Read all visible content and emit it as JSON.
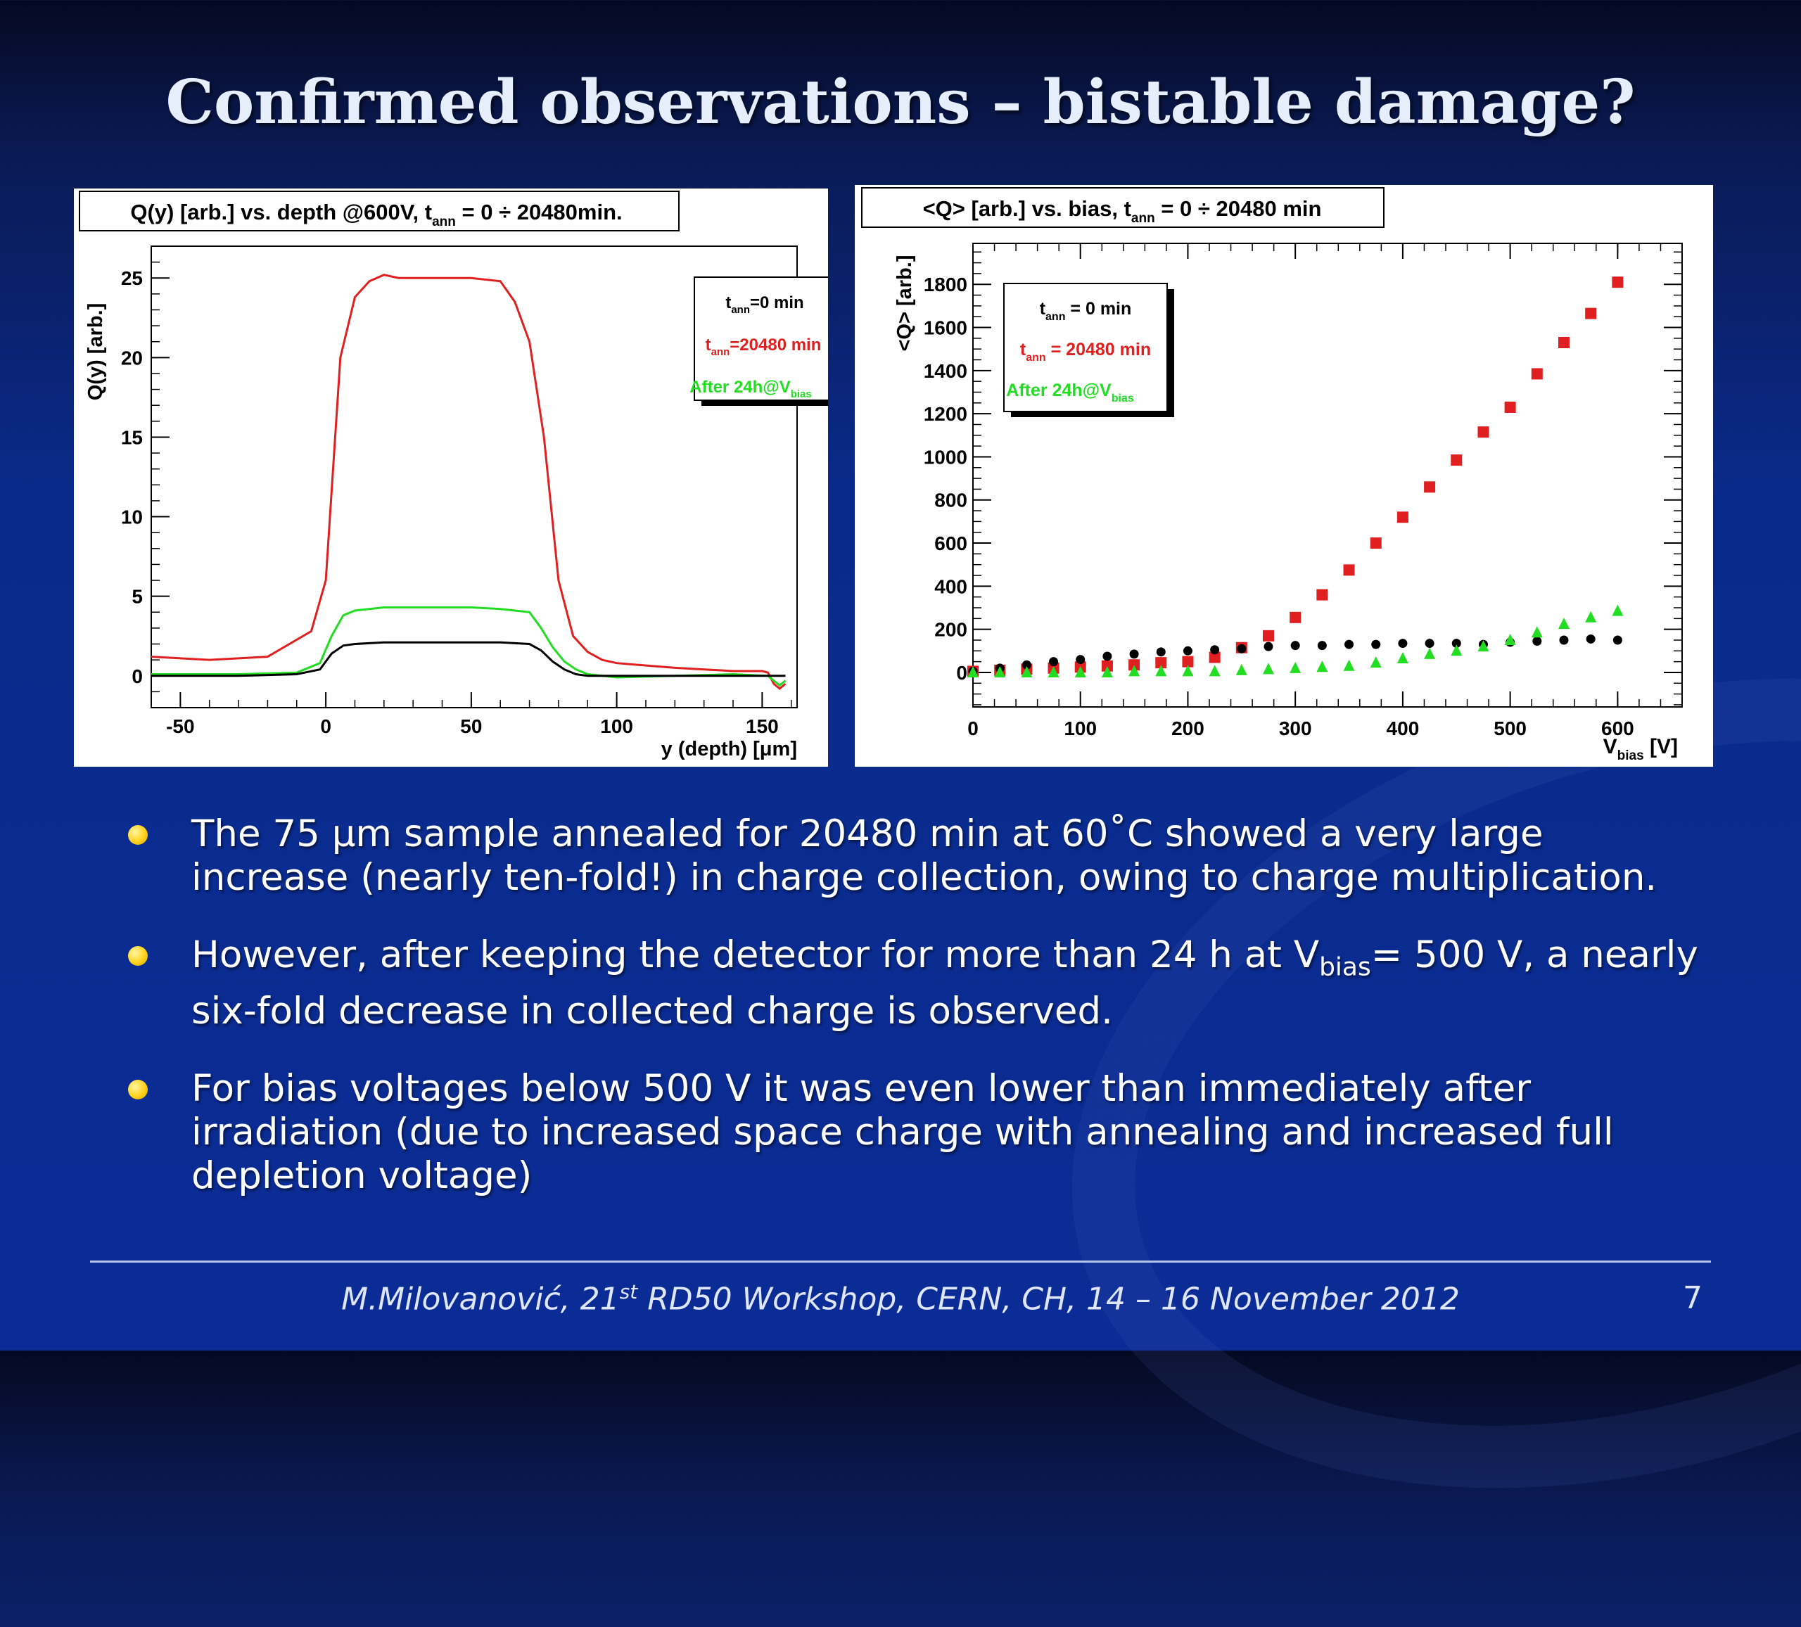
{
  "slide": {
    "title": "Confirmed observations – bistable damage?",
    "footer_prefix": "M.Milovanović, 21",
    "footer_sup": "st",
    "footer_suffix": " RD50 Workshop, CERN, CH, 14 – 16 November 2012",
    "page_number": "7",
    "bullets": [
      {
        "text": "The 75 μm sample annealed for 20480 min at 60˚C showed a very large increase (nearly ten-fold!) in charge collection, owing to charge multiplication."
      },
      {
        "text_a": "However, after keeping the detector for more than 24 h at V",
        "sub": "bias",
        "text_b": "= 500 V, a nearly six-fold decrease in collected charge is observed."
      },
      {
        "text": "For bias voltages below 500 V it was even lower than immediately after irradiation (due to increased space charge with annealing and increased full depletion voltage)"
      }
    ]
  },
  "colors": {
    "red": "#e02020",
    "green": "#22dd22",
    "black": "#000000"
  },
  "chart_data": [
    {
      "type": "line",
      "title_pre": "Q(y) [arb.] vs. depth @600V, t",
      "title_sub": "ann",
      "title_post": " = 0 ÷ 20480min.",
      "xlabel": "y (depth) [μm]",
      "ylabel": "Q(y) [arb.]",
      "xlim": [
        -60,
        162
      ],
      "ylim": [
        -2,
        27
      ],
      "xticks": [
        -50,
        0,
        50,
        100,
        150
      ],
      "yticks": [
        0,
        5,
        10,
        15,
        20,
        25
      ],
      "legend": [
        {
          "t": "t",
          "sub": "ann",
          "rest": "=0 min",
          "color": "#000000"
        },
        {
          "t": "t",
          "sub": "ann",
          "rest": "=20480 min",
          "color": "#e02020"
        },
        {
          "t": "After 24h@V",
          "sub": "bias",
          "rest": "",
          "color": "#22dd22"
        }
      ],
      "series": [
        {
          "color": "#e02020",
          "x": [
            -60,
            -40,
            -20,
            -5,
            0,
            5,
            10,
            15,
            20,
            25,
            30,
            40,
            50,
            60,
            65,
            70,
            75,
            80,
            85,
            90,
            95,
            100,
            120,
            140,
            150,
            152,
            154,
            156,
            158
          ],
          "y": [
            1.2,
            1.0,
            1.2,
            2.8,
            6.0,
            20.0,
            23.8,
            24.8,
            25.2,
            25.0,
            25.0,
            25.0,
            25.0,
            24.8,
            23.5,
            21.0,
            15.0,
            6.0,
            2.5,
            1.5,
            1.0,
            0.8,
            0.5,
            0.3,
            0.3,
            0.2,
            -0.5,
            -0.8,
            -0.5
          ]
        },
        {
          "color": "#22dd22",
          "x": [
            -60,
            -30,
            -10,
            -2,
            2,
            6,
            10,
            20,
            30,
            50,
            60,
            70,
            74,
            78,
            82,
            86,
            90,
            100,
            120,
            140,
            152,
            156,
            158
          ],
          "y": [
            0.1,
            0.1,
            0.2,
            0.8,
            2.5,
            3.8,
            4.1,
            4.3,
            4.3,
            4.3,
            4.2,
            4.0,
            3.0,
            1.8,
            0.9,
            0.4,
            0.1,
            -0.1,
            0.0,
            0.1,
            0.0,
            -0.6,
            -0.3
          ]
        },
        {
          "color": "#000000",
          "x": [
            -60,
            -30,
            -10,
            -2,
            2,
            6,
            10,
            20,
            40,
            60,
            70,
            74,
            78,
            82,
            86,
            90,
            100,
            120,
            140,
            158
          ],
          "y": [
            0.0,
            0.0,
            0.1,
            0.4,
            1.4,
            1.9,
            2.0,
            2.1,
            2.1,
            2.1,
            2.0,
            1.6,
            0.9,
            0.4,
            0.1,
            0.0,
            0.0,
            0.0,
            0.0,
            0.0
          ]
        }
      ]
    },
    {
      "type": "scatter",
      "title_pre": "<Q> [arb.] vs. bias, t",
      "title_sub": "ann",
      "title_post": " = 0 ÷ 20480 min",
      "xlabel_main": "V",
      "xlabel_sub": "bias",
      "xlabel_unit": " [V]",
      "ylabel": "<Q> [arb.]",
      "xlim": [
        0,
        660
      ],
      "ylim": [
        -160,
        1990
      ],
      "xticks": [
        0,
        100,
        200,
        300,
        400,
        500,
        600
      ],
      "yticks": [
        0,
        200,
        400,
        600,
        800,
        1000,
        1200,
        1400,
        1600,
        1800
      ],
      "legend": [
        {
          "t": "t",
          "sub": "ann",
          "rest": " = 0 min",
          "color": "#000000"
        },
        {
          "t": "t",
          "sub": "ann",
          "rest": " = 20480 min",
          "color": "#e02020"
        },
        {
          "t": "After 24h@V",
          "sub": "bias",
          "rest": "",
          "color": "#22dd22"
        }
      ],
      "series": [
        {
          "marker": "square",
          "color": "#e02020",
          "x": [
            0,
            25,
            50,
            75,
            100,
            125,
            150,
            175,
            200,
            225,
            250,
            275,
            300,
            325,
            350,
            375,
            400,
            425,
            450,
            475,
            500,
            525,
            550,
            575,
            600
          ],
          "y": [
            5,
            10,
            15,
            20,
            25,
            30,
            35,
            45,
            50,
            70,
            115,
            170,
            255,
            360,
            475,
            600,
            720,
            860,
            985,
            1115,
            1230,
            1385,
            1530,
            1665,
            1810
          ]
        },
        {
          "marker": "circle",
          "color": "#000000",
          "x": [
            0,
            25,
            50,
            75,
            100,
            125,
            150,
            175,
            200,
            225,
            250,
            275,
            300,
            325,
            350,
            375,
            400,
            425,
            450,
            475,
            500,
            525,
            550,
            575,
            600
          ],
          "y": [
            5,
            20,
            35,
            50,
            60,
            75,
            85,
            95,
            100,
            105,
            110,
            120,
            125,
            125,
            130,
            130,
            135,
            135,
            135,
            130,
            140,
            145,
            150,
            155,
            150
          ]
        },
        {
          "marker": "triangle",
          "color": "#22dd22",
          "x": [
            0,
            25,
            50,
            75,
            100,
            125,
            150,
            175,
            200,
            225,
            250,
            275,
            300,
            325,
            350,
            375,
            400,
            425,
            450,
            475,
            500,
            525,
            550,
            575,
            600
          ],
          "y": [
            0,
            0,
            0,
            0,
            0,
            0,
            5,
            5,
            5,
            5,
            10,
            15,
            20,
            25,
            30,
            45,
            65,
            85,
            100,
            120,
            150,
            185,
            225,
            255,
            285
          ]
        }
      ]
    }
  ]
}
